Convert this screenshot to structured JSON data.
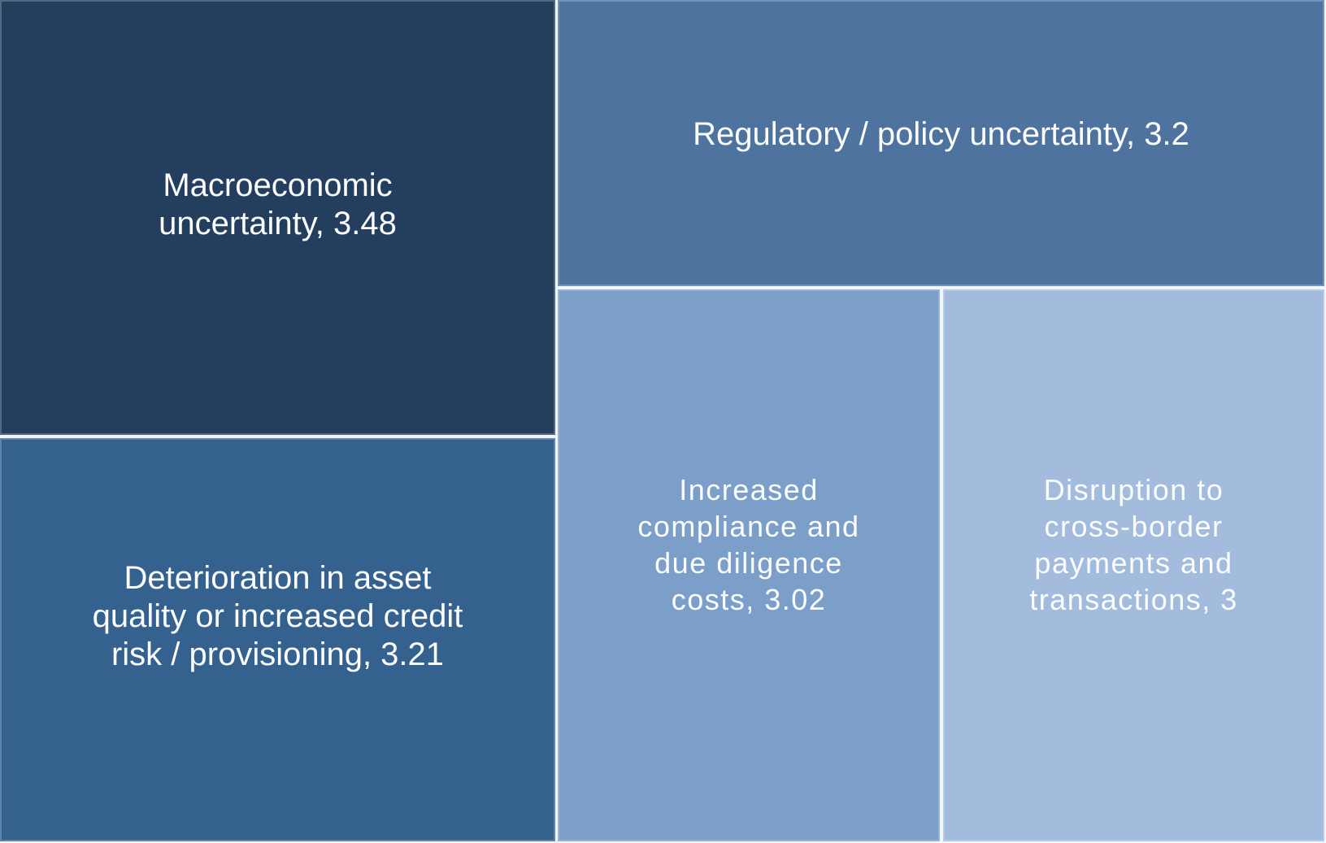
{
  "chart_data": {
    "type": "treemap",
    "title": "",
    "legend": false,
    "color_encoding": "darker blue = higher value",
    "items": [
      {
        "category": "Macroeconomic uncertainty",
        "value": 3.48,
        "display_label": "Macroeconomic\nuncertainty, 3.48",
        "color": "#243e5e"
      },
      {
        "category": "Deterioration in asset quality or increased credit risk / provisioning",
        "value": 3.21,
        "display_label": "Deterioration in asset\nquality or increased credit\nrisk / provisioning, 3.21",
        "color": "#35618f"
      },
      {
        "category": "Regulatory / policy uncertainty",
        "value": 3.2,
        "display_label": "Regulatory / policy uncertainty, 3.2",
        "color": "#4f739f"
      },
      {
        "category": "Increased compliance and due diligence costs",
        "value": 3.02,
        "display_label": "Increased\ncompliance and\ndue diligence\ncosts, 3.02",
        "color": "#7c9fc9"
      },
      {
        "category": "Disruption to cross-border payments and transactions",
        "value": 3,
        "display_label": "Disruption to\ncross-border\npayments and\ntransactions, 3",
        "color": "#a3bcde"
      }
    ],
    "divider_color": "#f2f5fa",
    "text_color": "#fbfcfe"
  }
}
